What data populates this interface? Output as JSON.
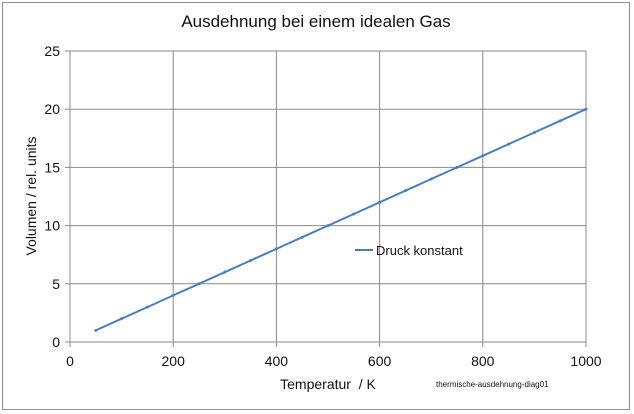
{
  "chart_data": {
    "type": "line",
    "title": "Ausdehnung bei einem idealen Gas",
    "xlabel": "Temperatur  / K",
    "ylabel": "Volumen / rel. units",
    "xlim": [
      0,
      1000
    ],
    "ylim": [
      0,
      25
    ],
    "xticks": [
      0,
      200,
      400,
      600,
      800,
      1000
    ],
    "yticks": [
      0,
      5,
      10,
      15,
      20,
      25
    ],
    "grid": true,
    "legend_position": "center-right",
    "series": [
      {
        "name": "Druck konstant",
        "color": "#4a7ebb",
        "x": [
          50,
          100,
          150,
          200,
          250,
          300,
          350,
          400,
          450,
          500,
          550,
          600,
          650,
          700,
          750,
          800,
          850,
          900,
          950,
          1000
        ],
        "y": [
          1,
          2,
          3,
          4,
          5,
          6,
          7,
          8,
          9,
          10,
          11,
          12,
          13,
          14,
          15,
          16,
          17,
          18,
          19,
          20
        ]
      }
    ],
    "annotation": "thermische-ausdehnung-diag01"
  }
}
